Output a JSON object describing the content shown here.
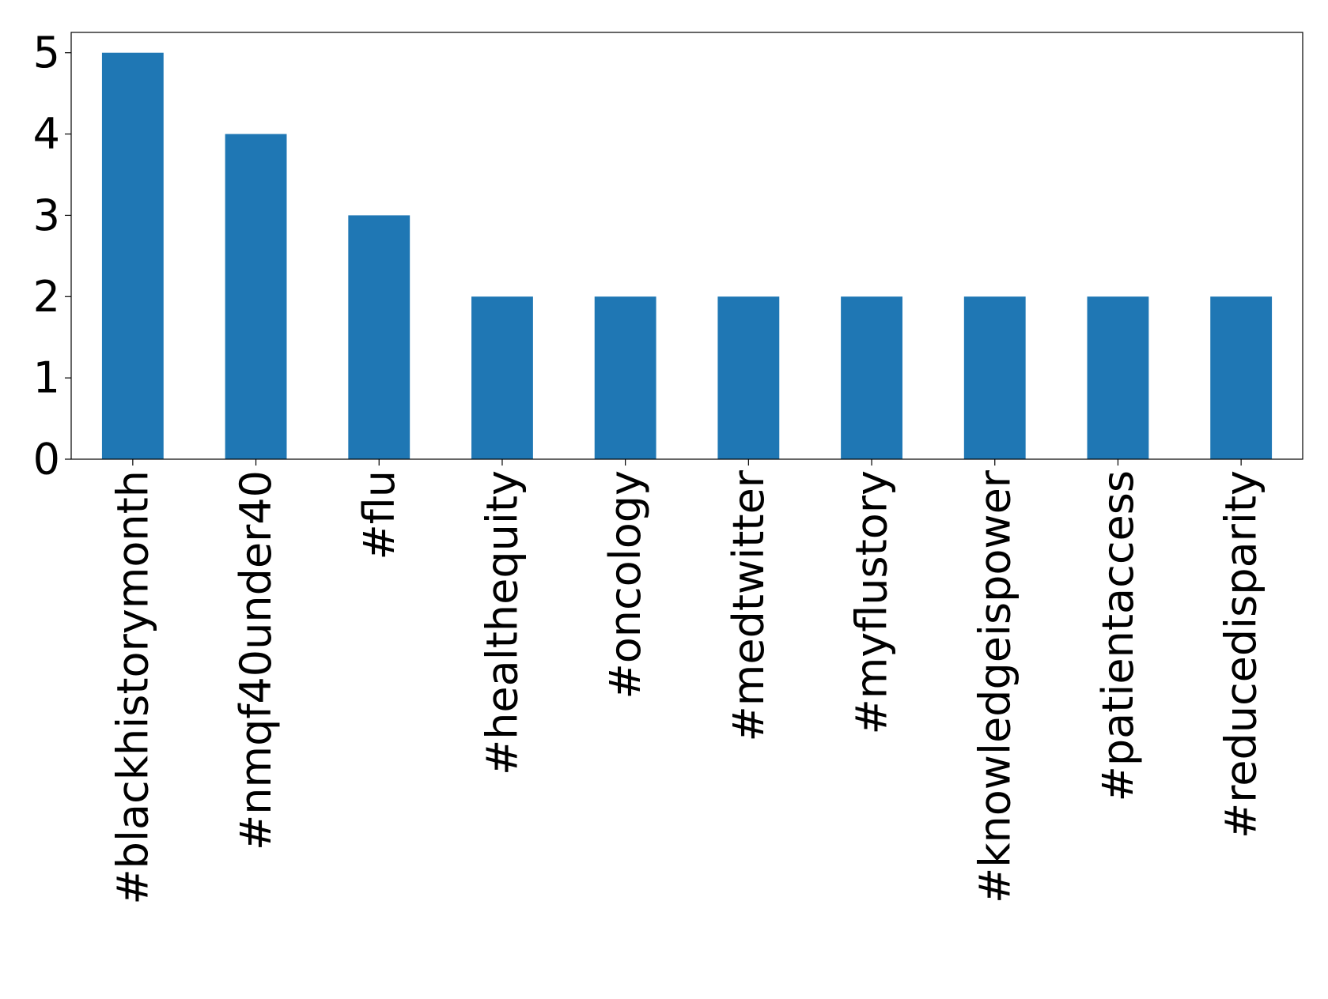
{
  "chart_data": {
    "type": "bar",
    "categories": [
      "#blackhistorymonth",
      "#nmqf40under40",
      "#flu",
      "#healthequity",
      "#oncology",
      "#medtwitter",
      "#myflustory",
      "#knowledgeispower",
      "#patientaccess",
      "#reducedisparity"
    ],
    "values": [
      5,
      4,
      3,
      2,
      2,
      2,
      2,
      2,
      2,
      2
    ],
    "color": "#1f77b4",
    "ylim": [
      0,
      5.25
    ],
    "yticks": [
      0,
      1,
      2,
      3,
      4,
      5
    ],
    "grid": false
  }
}
